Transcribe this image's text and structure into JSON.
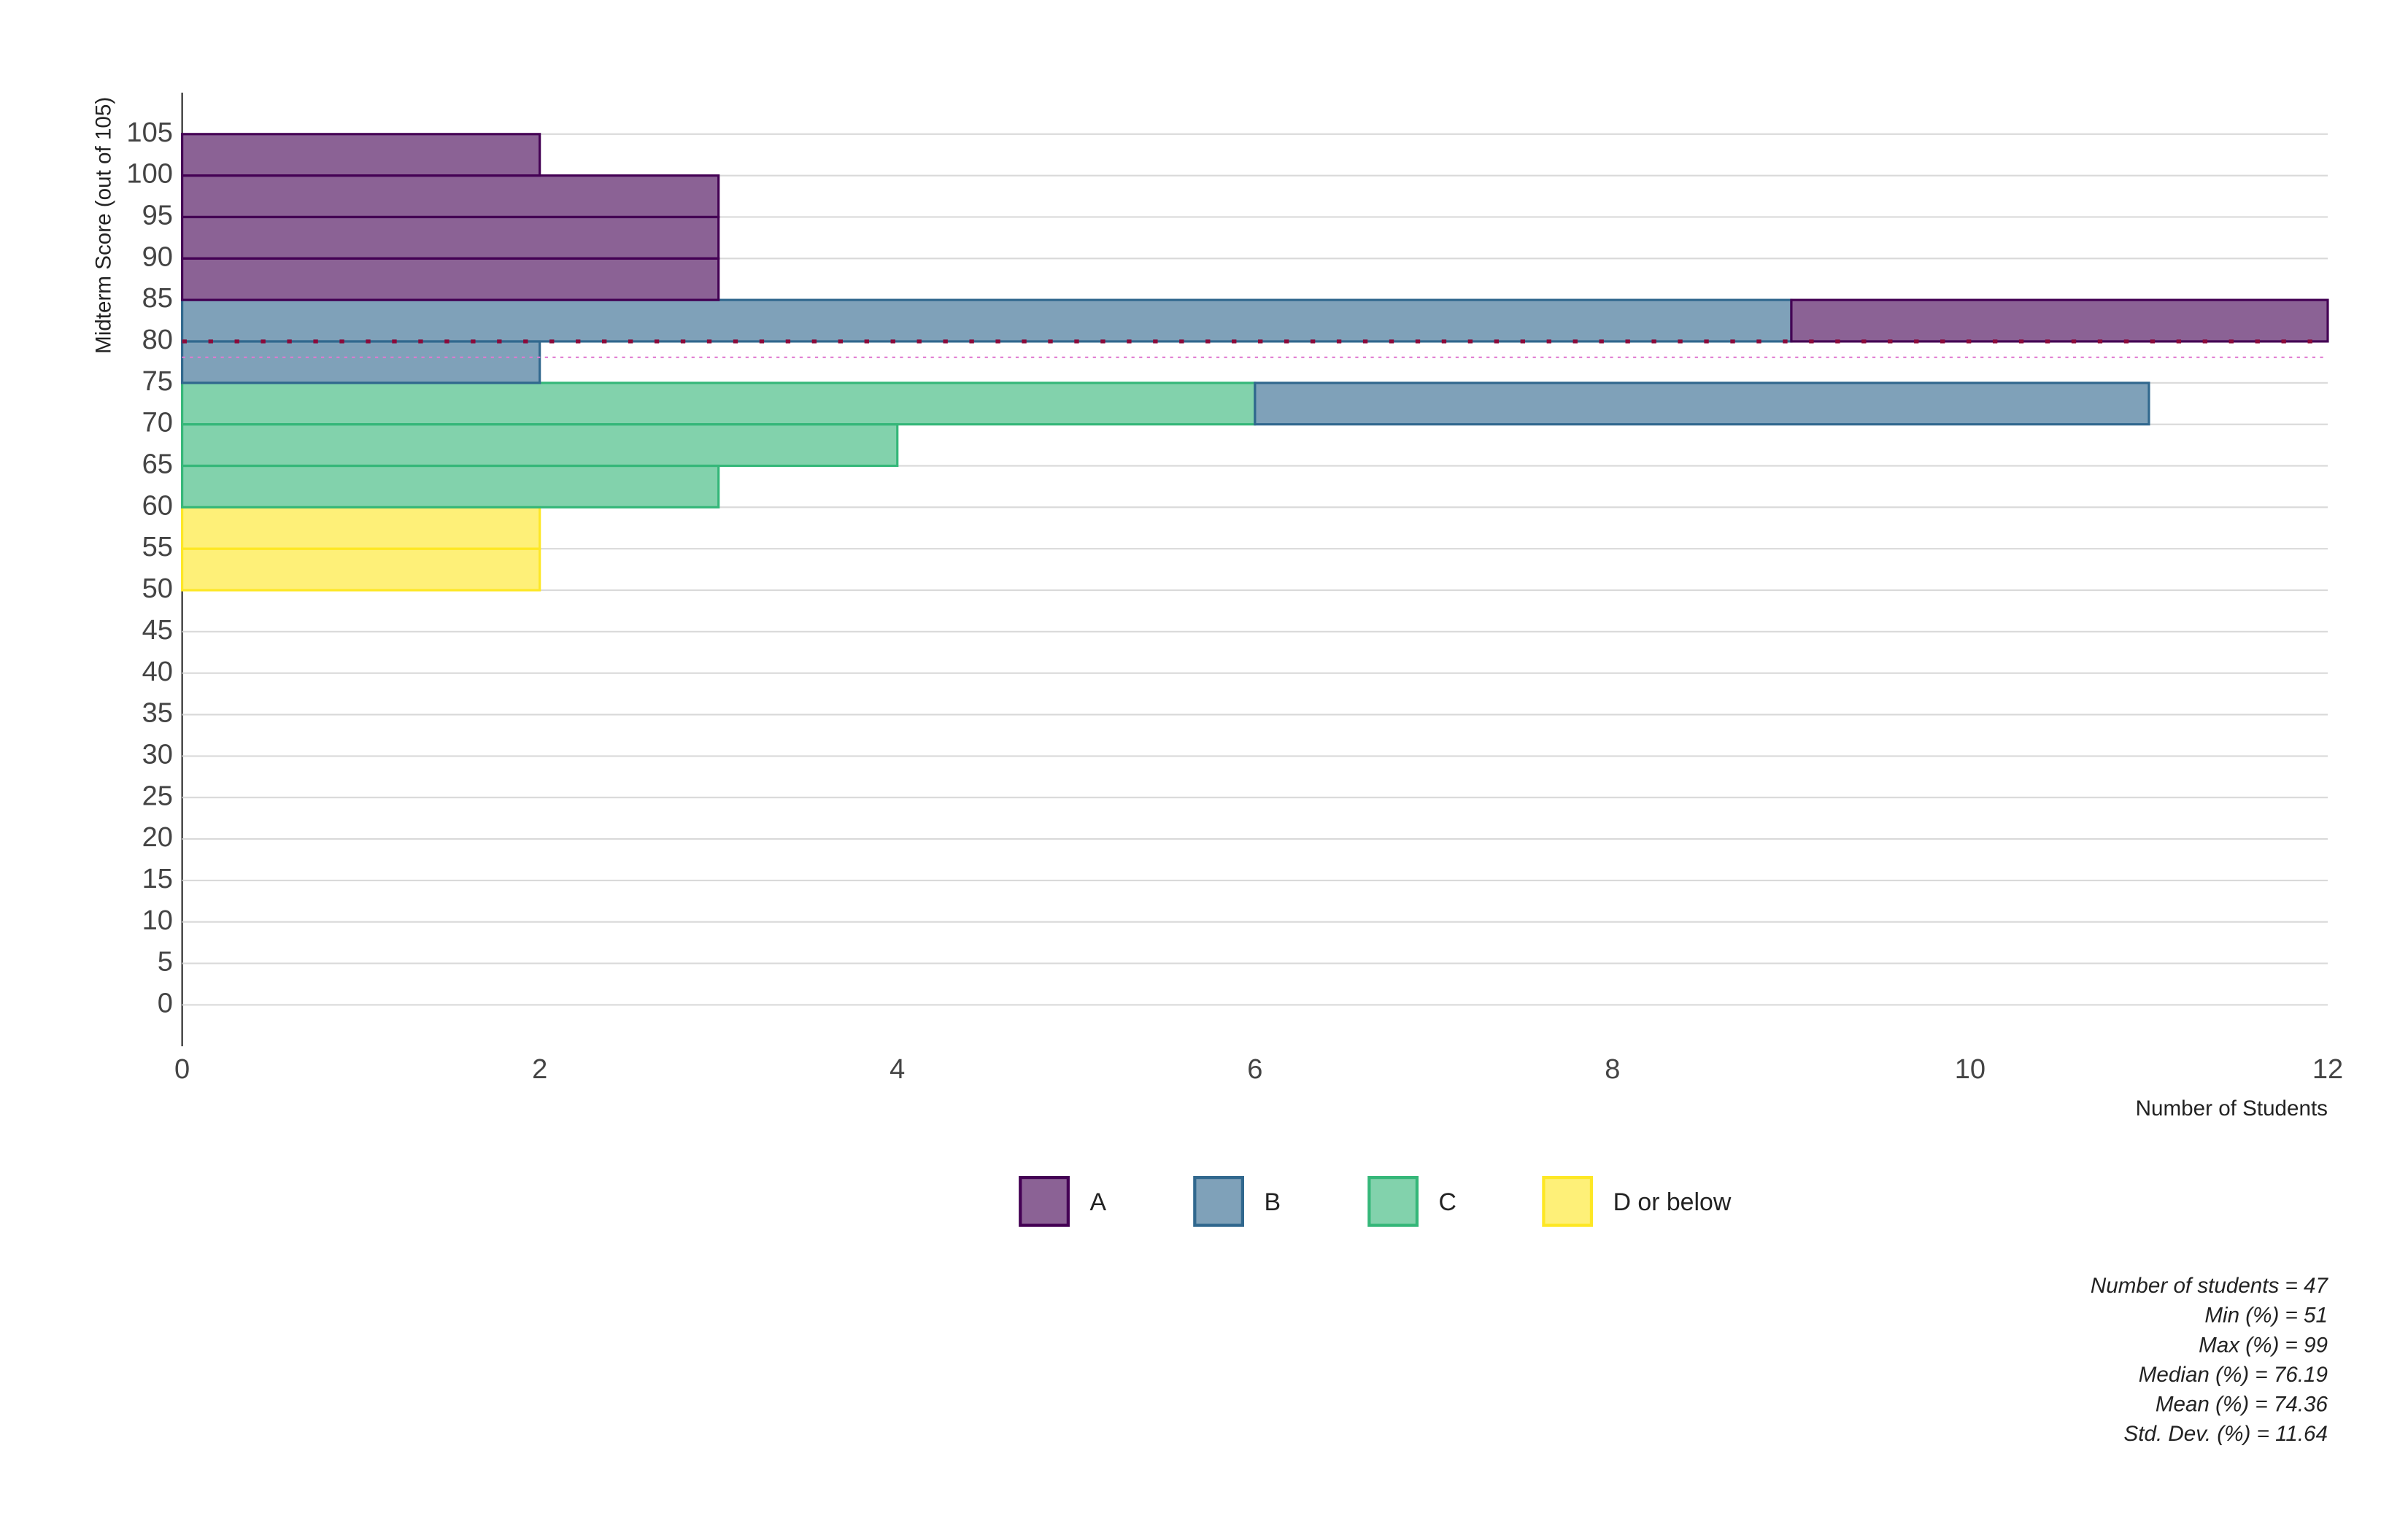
{
  "chart_data": {
    "type": "histogram",
    "orientation": "horizontal",
    "ylabel": "Midterm Score (out of 105)",
    "xlabel": "Number of Students",
    "bins": [
      50,
      55,
      60,
      65,
      70,
      75,
      80,
      85,
      90,
      95,
      100,
      105
    ],
    "series": [
      {
        "name": "A",
        "color": "#440154",
        "values": [
          0,
          0,
          0,
          0,
          0,
          0,
          3,
          3,
          3,
          3,
          2
        ]
      },
      {
        "name": "B",
        "color": "#31688e",
        "values": [
          0,
          0,
          0,
          0,
          5,
          2,
          9,
          0,
          0,
          0,
          0
        ]
      },
      {
        "name": "C",
        "color": "#35b779",
        "values": [
          0,
          0,
          3,
          4,
          6,
          0,
          0,
          0,
          0,
          0,
          0
        ]
      },
      {
        "name": "D or below",
        "color": "#fde725",
        "values": [
          2,
          2,
          0,
          0,
          0,
          0,
          0,
          0,
          0,
          0,
          0
        ]
      }
    ],
    "median_line": 80,
    "mean_line": 78.08,
    "ylim": [
      -5,
      110
    ],
    "yticks": [
      0,
      5,
      10,
      15,
      20,
      25,
      30,
      35,
      40,
      45,
      50,
      55,
      60,
      65,
      70,
      75,
      80,
      85,
      90,
      95,
      100,
      105
    ],
    "xlim": [
      0,
      12
    ],
    "xticks": [
      0,
      2,
      4,
      6,
      8,
      10,
      12
    ],
    "grid": true,
    "stats": [
      "Number of students = 47",
      "Min (%) = 51",
      "Max (%) = 99",
      "Median (%) = 76.19",
      "Mean (%) = 74.36",
      "Std. Dev. (%) = 11.64"
    ]
  }
}
